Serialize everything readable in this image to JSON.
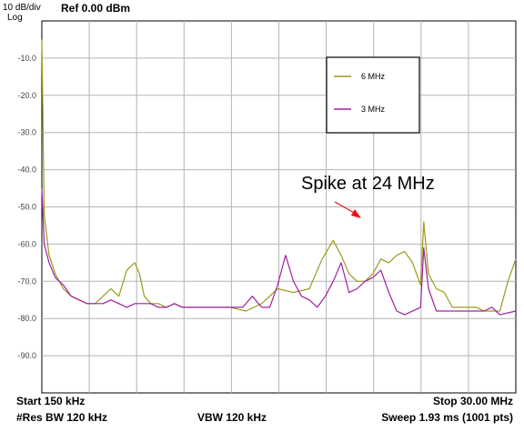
{
  "header": {
    "scale": "10 dB/div",
    "scale_type": "Log",
    "reference": "Ref 0.00 dBm"
  },
  "footer": {
    "start": "Start 150 kHz",
    "rbw": "#Res BW 120 kHz",
    "vbw": "VBW 120 kHz",
    "stop": "Stop 30.00 MHz",
    "sweep": "Sweep  1.93 ms (1001 pts)"
  },
  "annotation": {
    "text": "Spike at 24 MHz",
    "arrow_color": "#ee1111"
  },
  "chart_data": {
    "type": "line",
    "title": "",
    "xlabel": "",
    "ylabel": "",
    "xlim": [
      0.15,
      30.0
    ],
    "ylim": [
      -100,
      0
    ],
    "y_ticks": [
      "-10.0",
      "-20.0",
      "-30.0",
      "-40.0",
      "-50.0",
      "-60.0",
      "-70.0",
      "-80.0",
      "-90.0"
    ],
    "grid": true,
    "legend_position": "top-right",
    "series": [
      {
        "name": "6 MHz",
        "color": "#9b9a1a",
        "x": [
          0.15,
          0.3,
          0.6,
          1.0,
          1.5,
          2.0,
          2.5,
          3.0,
          3.5,
          4.0,
          4.5,
          5.0,
          5.5,
          6.0,
          6.3,
          6.6,
          7.0,
          7.5,
          8.0,
          8.5,
          9.0,
          10.0,
          11.0,
          12.0,
          13.0,
          14.0,
          15.0,
          16.0,
          17.0,
          17.8,
          18.5,
          19.0,
          19.5,
          20.0,
          20.5,
          21.0,
          21.5,
          22.0,
          22.5,
          23.0,
          23.5,
          24.0,
          24.2,
          24.5,
          25.0,
          25.5,
          26.0,
          26.5,
          27.0,
          27.5,
          28.0,
          28.5,
          29.0,
          29.5,
          30.0
        ],
        "y": [
          -5,
          -52,
          -63,
          -68,
          -72,
          -74,
          -75,
          -76,
          -76,
          -74,
          -72,
          -74,
          -67,
          -65,
          -68,
          -74,
          -76,
          -76,
          -77,
          -76,
          -77,
          -77,
          -77,
          -77,
          -78,
          -76,
          -72,
          -73,
          -72,
          -64,
          -59,
          -63,
          -68,
          -70,
          -70,
          -68,
          -64,
          -65,
          -63,
          -62,
          -65,
          -71,
          -54,
          -68,
          -72,
          -73,
          -77,
          -77,
          -77,
          -77,
          -78,
          -78,
          -78,
          -70,
          -64
        ]
      },
      {
        "name": "3 MHz",
        "color": "#a020a0",
        "x": [
          0.15,
          0.3,
          0.6,
          1.0,
          1.5,
          2.0,
          2.5,
          3.0,
          3.5,
          4.0,
          4.5,
          5.0,
          5.5,
          6.0,
          6.5,
          7.0,
          7.5,
          8.0,
          8.5,
          9.0,
          10.0,
          11.0,
          12.0,
          12.8,
          13.4,
          14.0,
          14.5,
          15.0,
          15.5,
          16.0,
          16.5,
          17.0,
          17.5,
          18.0,
          18.5,
          19.0,
          19.5,
          20.0,
          20.5,
          21.0,
          21.5,
          22.0,
          22.5,
          23.0,
          24.0,
          24.2,
          24.5,
          25.0,
          26.0,
          27.0,
          28.0,
          28.5,
          29.0,
          30.0
        ],
        "y": [
          -45,
          -60,
          -65,
          -69,
          -71,
          -74,
          -75,
          -76,
          -76,
          -76,
          -75,
          -76,
          -77,
          -76,
          -76,
          -76,
          -77,
          -77,
          -76,
          -77,
          -77,
          -77,
          -77,
          -77,
          -74,
          -77,
          -77,
          -71,
          -63,
          -70,
          -74,
          -75,
          -77,
          -74,
          -70,
          -65,
          -73,
          -72,
          -70,
          -69,
          -67,
          -73,
          -78,
          -79,
          -77,
          -61,
          -72,
          -78,
          -78,
          -78,
          -78,
          -77,
          -79,
          -78
        ]
      }
    ]
  }
}
